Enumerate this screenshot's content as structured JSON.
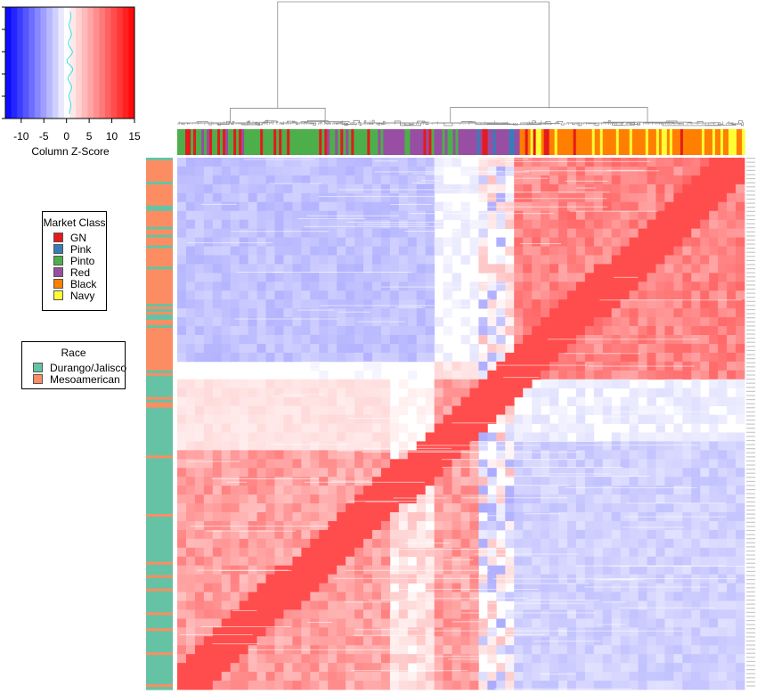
{
  "chart_data": {
    "type": "heatmap",
    "title": "",
    "color_key": {
      "title": "Column Z-Score",
      "ticks": [
        "-10",
        "-5",
        "0",
        "5",
        "10",
        "15"
      ],
      "tick_values": [
        -10,
        -5,
        0,
        5,
        10,
        15
      ],
      "range": [
        -13.5,
        15
      ],
      "low_color": "#0000ff",
      "mid_color": "#ffffff",
      "high_color": "#ff0000"
    },
    "column_dendrogram": true,
    "column_color_bar": "Market Class",
    "row_color_bar": "Race",
    "market_class_legend": {
      "title": "Market Class",
      "entries": [
        {
          "label": "GN",
          "color": "#e41a1c"
        },
        {
          "label": "Pink",
          "color": "#377eb8"
        },
        {
          "label": "Pinto",
          "color": "#4daf4a"
        },
        {
          "label": "Red",
          "color": "#984ea3"
        },
        {
          "label": "Black",
          "color": "#ff7f00"
        },
        {
          "label": "Navy",
          "color": "#ffff33"
        }
      ]
    },
    "race_legend": {
      "title": "Race",
      "entries": [
        {
          "label": "Durango/Jalisco",
          "color": "#66c2a5"
        },
        {
          "label": "Mesoamerican",
          "color": "#fc8d62"
        }
      ]
    }
  }
}
